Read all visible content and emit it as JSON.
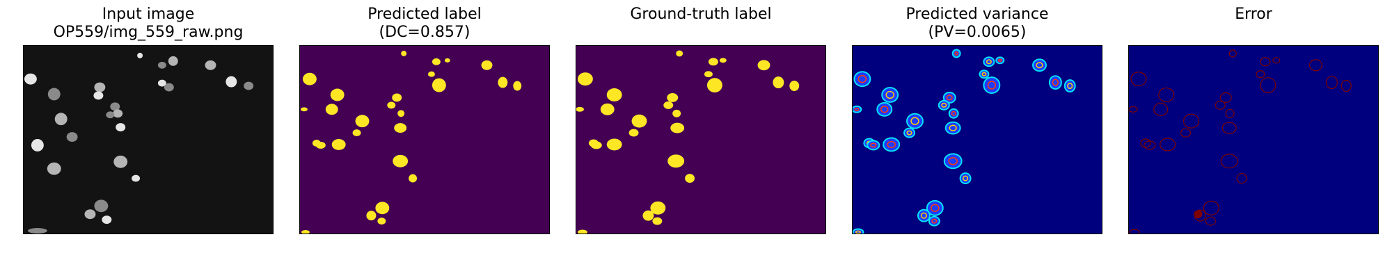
{
  "figure": {
    "panels": [
      {
        "title": [
          "Input image",
          "OP559/img_559_raw.png"
        ],
        "kind": "raw"
      },
      {
        "title": [
          "Predicted label",
          "(DC=0.857)"
        ],
        "kind": "pred"
      },
      {
        "title": [
          "",
          "Ground-truth label"
        ],
        "kind": "gt"
      },
      {
        "title": [
          "Predicted variance",
          "(PV=0.0065)"
        ],
        "kind": "var"
      },
      {
        "title": [
          "",
          "Error"
        ],
        "kind": "err"
      }
    ],
    "colors": {
      "raw_bg": "#131313",
      "label_bg": "#440154",
      "label_fg": "#fde725",
      "var_bg": "#00007f",
      "err_bg": "#00007f",
      "err_fg": "#7f0000"
    }
  }
}
